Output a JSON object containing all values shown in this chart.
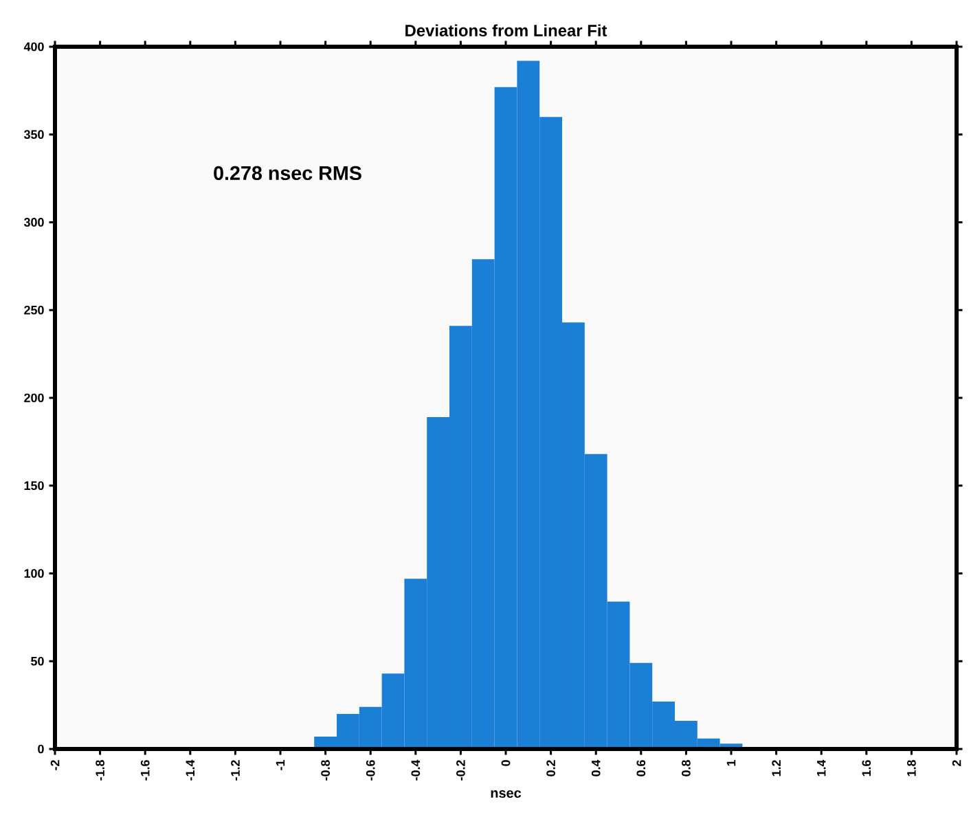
{
  "chart_data": {
    "type": "histogram",
    "title": "Deviations from Linear Fit",
    "xlabel": "nsec",
    "annotations": [
      "0.278 nsec RMS"
    ],
    "bins": [
      -0.85,
      -0.75,
      -0.65,
      -0.55,
      -0.45,
      -0.35,
      -0.25,
      -0.15,
      -0.05,
      0.05,
      0.15,
      0.25,
      0.35,
      0.45,
      0.55,
      0.65,
      0.75,
      0.85,
      0.95,
      1.05
    ],
    "values": [
      7,
      20,
      24,
      43,
      97,
      189,
      241,
      279,
      377,
      392,
      360,
      243,
      168,
      84,
      49,
      27,
      16,
      6,
      3
    ],
    "color": "#1c7fd6",
    "xlim": [
      -2,
      2
    ],
    "ylim": [
      0,
      400
    ],
    "xticks": [
      -2,
      -1.8,
      -1.6,
      -1.4,
      -1.2,
      -1,
      -0.8,
      -0.6,
      -0.4,
      -0.2,
      0,
      0.2,
      0.4,
      0.6,
      0.8,
      1,
      1.2,
      1.4,
      1.6,
      1.8,
      2
    ],
    "yticks": [
      0,
      50,
      100,
      150,
      200,
      250,
      300,
      350,
      400
    ],
    "grid": false,
    "legend": false
  }
}
